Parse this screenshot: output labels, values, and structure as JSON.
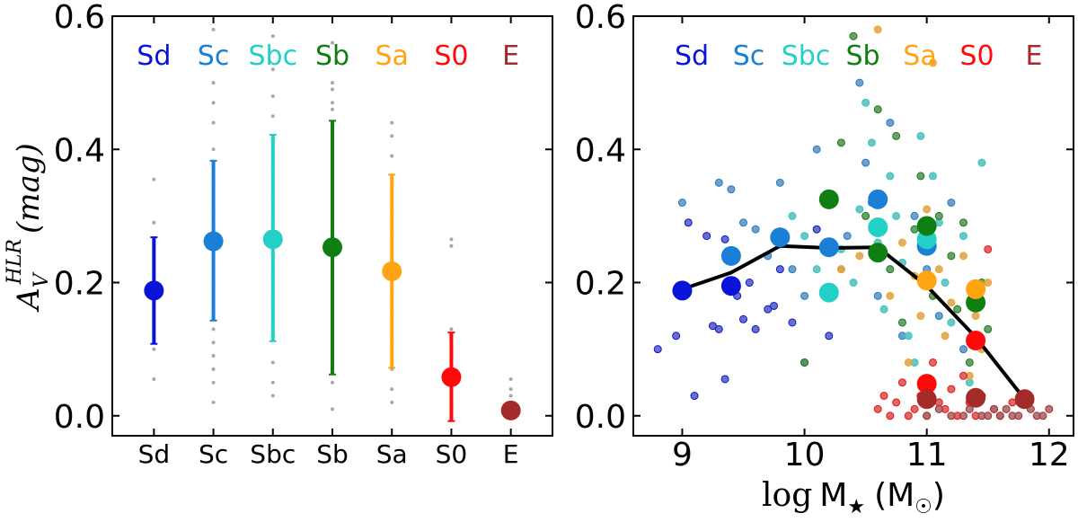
{
  "chart_data": [
    {
      "type": "scatter",
      "panel": "left",
      "ylabel": "A_V^{HLR} (mag)",
      "ylabel_main": "A",
      "ylabel_sub": "V",
      "ylabel_sup": "HLR",
      "ylabel_unit": "(mag)",
      "ylim": [
        -0.03,
        0.6
      ],
      "yticks": [
        "0.0",
        "0.2",
        "0.4",
        "0.6"
      ],
      "categories": [
        "Sd",
        "Sc",
        "Sbc",
        "Sb",
        "Sa",
        "S0",
        "E"
      ],
      "type_labels": [
        "Sd",
        "Sc",
        "Sbc",
        "Sb",
        "Sa",
        "S0",
        "E"
      ],
      "colors": [
        "#0a14d8",
        "#1a7fd6",
        "#22d0c8",
        "#0f7f12",
        "#ffa514",
        "#ff0a0a",
        "#a52a2a"
      ],
      "means": [
        0.188,
        0.262,
        0.265,
        0.253,
        0.217,
        0.058,
        0.008
      ],
      "err_low": [
        0.108,
        0.143,
        0.112,
        0.062,
        0.072,
        -0.008,
        0.008
      ],
      "err_high": [
        0.268,
        0.383,
        0.422,
        0.443,
        0.362,
        0.125,
        0.008
      ],
      "scatter_grey": [
        [
          0.355,
          0.29,
          0.24,
          0.22,
          0.2,
          0.18,
          0.16,
          0.14,
          0.12,
          0.1,
          0.055
        ],
        [
          0.58,
          0.5,
          0.47,
          0.44,
          0.4,
          0.38,
          0.35,
          0.31,
          0.28,
          0.24,
          0.2,
          0.16,
          0.13,
          0.11,
          0.09,
          0.07,
          0.05,
          0.02
        ],
        [
          0.57,
          0.52,
          0.48,
          0.45,
          0.41,
          0.37,
          0.33,
          0.29,
          0.25,
          0.21,
          0.17,
          0.13,
          0.08,
          0.05,
          0.03
        ],
        [
          0.56,
          0.5,
          0.49,
          0.47,
          0.46,
          0.44,
          0.41,
          0.38,
          0.34,
          0.3,
          0.26,
          0.22,
          0.18,
          0.14,
          0.1,
          0.07,
          0.05,
          0.01
        ],
        [
          0.44,
          0.42,
          0.39,
          0.35,
          0.31,
          0.27,
          0.23,
          0.19,
          0.15,
          0.11,
          0.07,
          0.04,
          0.02
        ],
        [
          0.265,
          0.255,
          0.13,
          0.12,
          0.1,
          0.08,
          0.06,
          0.04,
          0.02,
          0.01
        ],
        [
          0.055,
          0.04,
          0.03,
          0.02,
          0.01,
          0.005
        ]
      ]
    },
    {
      "type": "scatter",
      "panel": "right",
      "xlabel": "log M★ (M☉)",
      "xlabel_log": "log",
      "xlabel_M": "M",
      "xlabel_star": "★",
      "xlabel_unit_open": "(M",
      "xlabel_sun": "☉",
      "xlabel_unit_close": ")",
      "xlim": [
        8.6,
        12.2
      ],
      "ylim": [
        -0.03,
        0.6
      ],
      "xticks": [
        "9",
        "10",
        "11",
        "12"
      ],
      "yticks": [
        "0.0",
        "0.2",
        "0.4",
        "0.6"
      ],
      "type_labels": [
        "Sd",
        "Sc",
        "Sbc",
        "Sb",
        "Sa",
        "S0",
        "E"
      ],
      "colors": [
        "#0a14d8",
        "#1a7fd6",
        "#22d0c8",
        "#0f7f12",
        "#ffa514",
        "#ff0a0a",
        "#a52a2a"
      ],
      "binned": [
        {
          "type": "Sd",
          "points": [
            [
              9.0,
              0.188
            ],
            [
              9.4,
              0.195
            ]
          ]
        },
        {
          "type": "Sc",
          "points": [
            [
              9.4,
              0.24
            ],
            [
              9.8,
              0.268
            ],
            [
              10.2,
              0.253
            ],
            [
              10.6,
              0.325
            ],
            [
              11.0,
              0.255
            ]
          ]
        },
        {
          "type": "Sbc",
          "points": [
            [
              10.2,
              0.185
            ],
            [
              10.6,
              0.283
            ],
            [
              11.0,
              0.265
            ]
          ]
        },
        {
          "type": "Sb",
          "points": [
            [
              10.2,
              0.325
            ],
            [
              10.6,
              0.245
            ],
            [
              11.0,
              0.285
            ],
            [
              11.4,
              0.17
            ]
          ]
        },
        {
          "type": "Sa",
          "points": [
            [
              11.0,
              0.203
            ],
            [
              11.4,
              0.19
            ]
          ]
        },
        {
          "type": "S0",
          "points": [
            [
              11.0,
              0.048
            ],
            [
              11.4,
              0.113
            ]
          ]
        },
        {
          "type": "E",
          "points": [
            [
              11.0,
              0.025
            ],
            [
              11.4,
              0.027
            ],
            [
              11.8,
              0.025
            ]
          ]
        }
      ],
      "trend_line": {
        "x": [
          9.0,
          9.4,
          9.8,
          10.2,
          10.6,
          11.0,
          11.4,
          11.8
        ],
        "y": [
          0.19,
          0.215,
          0.255,
          0.252,
          0.253,
          0.195,
          0.118,
          0.025
        ]
      },
      "individual_galaxies": [
        {
          "type": "Sd",
          "points": [
            [
              8.8,
              0.1
            ],
            [
              8.95,
              0.12
            ],
            [
              9.05,
              0.29
            ],
            [
              9.1,
              0.03
            ],
            [
              9.2,
              0.27
            ],
            [
              9.25,
              0.135
            ],
            [
              9.3,
              0.13
            ],
            [
              9.35,
              0.055
            ],
            [
              9.35,
              0.265
            ],
            [
              9.45,
              0.18
            ],
            [
              9.5,
              0.145
            ],
            [
              9.55,
              0.2
            ],
            [
              9.6,
              0.13
            ],
            [
              9.7,
              0.16
            ],
            [
              9.75,
              0.165
            ],
            [
              9.8,
              0.22
            ],
            [
              9.9,
              0.14
            ],
            [
              10.0,
              0.08
            ],
            [
              10.1,
              0.28
            ],
            [
              10.2,
              0.12
            ]
          ]
        },
        {
          "type": "Sc",
          "points": [
            [
              9.0,
              0.32
            ],
            [
              9.3,
              0.35
            ],
            [
              9.4,
              0.34
            ],
            [
              9.5,
              0.29
            ],
            [
              9.6,
              0.28
            ],
            [
              9.7,
              0.24
            ],
            [
              9.8,
              0.35
            ],
            [
              9.9,
              0.22
            ],
            [
              10.0,
              0.18
            ],
            [
              10.1,
              0.4
            ],
            [
              10.2,
              0.33
            ],
            [
              10.3,
              0.22
            ],
            [
              10.35,
              0.27
            ],
            [
              10.45,
              0.5
            ],
            [
              10.5,
              0.38
            ],
            [
              10.55,
              0.32
            ],
            [
              10.6,
              0.18
            ],
            [
              10.7,
              0.44
            ],
            [
              10.8,
              0.12
            ],
            [
              10.9,
              0.3
            ],
            [
              11.0,
              0.22
            ],
            [
              11.1,
              0.15
            ],
            [
              11.2,
              0.32
            ],
            [
              11.3,
              0.1
            ]
          ]
        },
        {
          "type": "Sbc",
          "points": [
            [
              9.9,
              0.3
            ],
            [
              10.0,
              0.27
            ],
            [
              10.1,
              0.22
            ],
            [
              10.2,
              0.33
            ],
            [
              10.3,
              0.25
            ],
            [
              10.4,
              0.2
            ],
            [
              10.45,
              0.31
            ],
            [
              10.5,
              0.47
            ],
            [
              10.55,
              0.41
            ],
            [
              10.6,
              0.26
            ],
            [
              10.65,
              0.16
            ],
            [
              10.7,
              0.36
            ],
            [
              10.75,
              0.3
            ],
            [
              10.8,
              0.23
            ],
            [
              10.85,
              0.12
            ],
            [
              10.9,
              0.08
            ],
            [
              10.95,
              0.42
            ],
            [
              11.05,
              0.36
            ],
            [
              11.1,
              0.29
            ],
            [
              11.15,
              0.2
            ],
            [
              11.2,
              0.14
            ],
            [
              11.3,
              0.27
            ],
            [
              11.35,
              0.05
            ],
            [
              11.45,
              0.38
            ]
          ]
        },
        {
          "type": "Sb",
          "points": [
            [
              10.0,
              0.08
            ],
            [
              10.3,
              0.41
            ],
            [
              10.4,
              0.57
            ],
            [
              10.5,
              0.3
            ],
            [
              10.6,
              0.46
            ],
            [
              10.7,
              0.22
            ],
            [
              10.75,
              0.42
            ],
            [
              10.8,
              0.14
            ],
            [
              10.9,
              0.28
            ],
            [
              10.95,
              0.36
            ],
            [
              11.05,
              0.18
            ],
            [
              11.1,
              0.3
            ],
            [
              11.2,
              0.24
            ],
            [
              11.25,
              0.16
            ],
            [
              11.3,
              0.29
            ],
            [
              11.35,
              0.08
            ],
            [
              11.45,
              0.2
            ],
            [
              11.5,
              0.13
            ]
          ]
        },
        {
          "type": "Sa",
          "points": [
            [
              10.3,
              0.22
            ],
            [
              10.45,
              0.24
            ],
            [
              10.6,
              0.58
            ],
            [
              10.7,
              0.18
            ],
            [
              10.8,
              0.26
            ],
            [
              10.85,
              0.08
            ],
            [
              10.9,
              0.21
            ],
            [
              10.95,
              0.15
            ],
            [
              11.0,
              0.31
            ],
            [
              11.05,
              0.53
            ],
            [
              11.1,
              0.22
            ],
            [
              11.15,
              0.12
            ],
            [
              11.2,
              0.17
            ],
            [
              11.3,
              0.24
            ],
            [
              11.35,
              0.06
            ],
            [
              11.4,
              0.15
            ],
            [
              11.45,
              0.1
            ],
            [
              11.5,
              0.2
            ]
          ]
        },
        {
          "type": "S0",
          "points": [
            [
              10.6,
              0.01
            ],
            [
              10.65,
              0.03
            ],
            [
              10.7,
              0.0
            ],
            [
              10.75,
              0.02
            ],
            [
              10.8,
              0.05
            ],
            [
              10.85,
              0.0
            ],
            [
              10.9,
              0.01
            ],
            [
              10.95,
              0.03
            ],
            [
              11.0,
              0.0
            ],
            [
              11.05,
              0.08
            ],
            [
              11.1,
              0.02
            ],
            [
              11.15,
              0.01
            ],
            [
              11.2,
              0.04
            ],
            [
              11.25,
              0.0
            ],
            [
              11.3,
              0.06
            ],
            [
              11.35,
              0.02
            ],
            [
              11.4,
              0.0
            ],
            [
              11.45,
              0.03
            ],
            [
              11.5,
              0.25
            ],
            [
              11.55,
              0.01
            ],
            [
              11.6,
              0.0
            ],
            [
              11.7,
              0.02
            ]
          ]
        },
        {
          "type": "E",
          "points": [
            [
              11.0,
              0.0
            ],
            [
              11.1,
              0.01
            ],
            [
              11.2,
              0.0
            ],
            [
              11.3,
              0.0
            ],
            [
              11.35,
              0.01
            ],
            [
              11.45,
              0.0
            ],
            [
              11.5,
              0.0
            ],
            [
              11.55,
              0.01
            ],
            [
              11.6,
              0.0
            ],
            [
              11.65,
              0.01
            ],
            [
              11.7,
              0.0
            ],
            [
              11.75,
              0.0
            ],
            [
              11.85,
              0.01
            ],
            [
              11.9,
              0.0
            ],
            [
              11.95,
              0.0
            ],
            [
              12.0,
              0.01
            ]
          ]
        }
      ]
    }
  ]
}
